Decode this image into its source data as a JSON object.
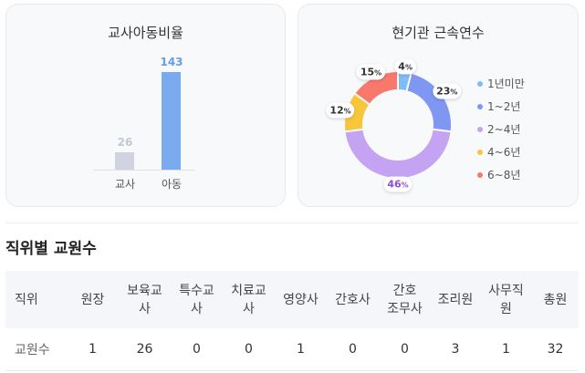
{
  "ratio_card": {
    "title": "교사아동비율",
    "bars": [
      {
        "label": "교사",
        "value": "26",
        "ratio": 0.18,
        "color": "#cfd4e0",
        "value_color": "#c3c8d3"
      },
      {
        "label": "아동",
        "value": "143",
        "ratio": 1.0,
        "color": "#7aaaf0",
        "value_color": "#6a9de8"
      }
    ]
  },
  "tenure_card": {
    "title": "현기관 근속연수",
    "chart_data": {
      "type": "pie",
      "categories": [
        "1년미만",
        "1~2년",
        "2~4년",
        "4~6년",
        "6~8년"
      ],
      "values": [
        4,
        23,
        46,
        12,
        15
      ],
      "colors": [
        "#7fbdf7",
        "#7f96f3",
        "#c4a3f2",
        "#f7c63a",
        "#f8786b"
      ],
      "label_colors": [
        "#333333",
        "#333333",
        "#8a4fd8",
        "#333333",
        "#333333"
      ],
      "labels": [
        "4%",
        "23%",
        "46%",
        "12%",
        "15%"
      ],
      "legend_position": "right"
    }
  },
  "staff_section": {
    "title": "직위별 교원수",
    "headers": [
      "직위",
      "원장",
      "보육교사",
      "특수교사",
      "치료교사",
      "영양사",
      "간호사",
      "간호조무사",
      "조리원",
      "사무직원",
      "총원"
    ],
    "header_lines": [
      [
        "직위"
      ],
      [
        "원장"
      ],
      [
        "보육교",
        "사"
      ],
      [
        "특수교",
        "사"
      ],
      [
        "치료교",
        "사"
      ],
      [
        "영양사"
      ],
      [
        "간호사"
      ],
      [
        "간호",
        "조무사"
      ],
      [
        "조리원"
      ],
      [
        "사무직",
        "원"
      ],
      [
        "총원"
      ]
    ],
    "row": [
      "교원수",
      "1",
      "26",
      "0",
      "0",
      "1",
      "0",
      "0",
      "3",
      "1",
      "32"
    ]
  }
}
